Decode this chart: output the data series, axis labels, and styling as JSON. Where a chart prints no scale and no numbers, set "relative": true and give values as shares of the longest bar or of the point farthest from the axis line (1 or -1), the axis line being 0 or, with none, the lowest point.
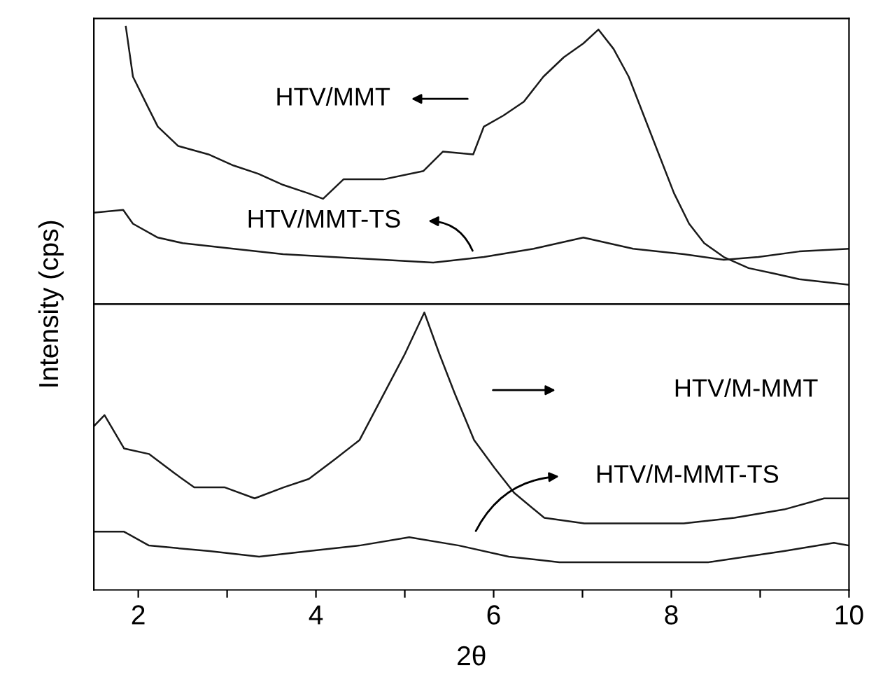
{
  "chart_data": [
    {
      "type": "line",
      "relative": true,
      "xlim": [
        1.5,
        10
      ],
      "tick_labels": false,
      "ylabel": "Intensity (cps)",
      "marker": "none",
      "line_style": "solid",
      "legend": false,
      "grid": false,
      "annotations": [
        "HTV/MMT",
        "HTV/MMT-TS"
      ],
      "series": [
        {
          "color": "#1a1a1a",
          "x": [
            1.86,
            1.94,
            2.11,
            2.22,
            2.45,
            2.79,
            3.07,
            3.35,
            3.63,
            3.91,
            4.08,
            4.31,
            4.76,
            5.21,
            5.43,
            5.77,
            5.89,
            6.11,
            6.34,
            6.56,
            6.79,
            7.01,
            7.18,
            7.35,
            7.52,
            7.69,
            7.86,
            8.03,
            8.2,
            8.37,
            8.59,
            8.87,
            9.16,
            9.44,
            9.72,
            10.0
          ],
          "values": [
            1.0,
            0.82,
            0.71,
            0.64,
            0.57,
            0.54,
            0.5,
            0.47,
            0.43,
            0.4,
            0.38,
            0.45,
            0.45,
            0.48,
            0.55,
            0.54,
            0.64,
            0.68,
            0.73,
            0.82,
            0.89,
            0.94,
            0.99,
            0.92,
            0.82,
            0.68,
            0.54,
            0.4,
            0.29,
            0.22,
            0.17,
            0.13,
            0.11,
            0.09,
            0.08,
            0.07
          ]
        },
        {
          "color": "#1a1a1a",
          "x": [
            1.5,
            1.83,
            1.94,
            2.22,
            2.5,
            3.07,
            3.63,
            4.19,
            4.76,
            5.32,
            5.89,
            6.45,
            7.01,
            7.57,
            8.14,
            8.59,
            8.98,
            9.44,
            10.0
          ],
          "values": [
            0.33,
            0.34,
            0.29,
            0.24,
            0.22,
            0.2,
            0.18,
            0.17,
            0.16,
            0.15,
            0.17,
            0.2,
            0.24,
            0.2,
            0.18,
            0.16,
            0.17,
            0.19,
            0.2
          ]
        }
      ]
    },
    {
      "type": "line",
      "relative": true,
      "xlim": [
        1.5,
        10
      ],
      "tick_labels": "x",
      "xlabel": "2θ",
      "marker": "none",
      "line_style": "solid",
      "legend": false,
      "grid": false,
      "xticks": [
        2,
        {
          "value": 3,
          "label": null
        },
        4,
        {
          "value": 5,
          "label": null
        },
        6,
        {
          "value": 7,
          "label": null
        },
        8,
        {
          "value": 9,
          "label": null
        },
        10
      ],
      "annotations": [
        "HTV/M-MMT",
        "HTV/M-MMT-TS"
      ],
      "series": [
        {
          "color": "#1a1a1a",
          "x": [
            1.5,
            1.62,
            1.84,
            2.12,
            2.41,
            2.63,
            2.97,
            3.31,
            3.64,
            3.92,
            4.21,
            4.49,
            4.77,
            5.0,
            5.22,
            5.39,
            5.56,
            5.78,
            6.01,
            6.23,
            6.57,
            7.02,
            7.58,
            8.14,
            8.71,
            9.27,
            9.72,
            10.0
          ],
          "values": [
            0.59,
            0.63,
            0.51,
            0.49,
            0.42,
            0.37,
            0.37,
            0.33,
            0.37,
            0.4,
            0.47,
            0.54,
            0.71,
            0.85,
            1.0,
            0.85,
            0.71,
            0.54,
            0.44,
            0.35,
            0.26,
            0.24,
            0.24,
            0.24,
            0.26,
            0.29,
            0.33,
            0.33
          ]
        },
        {
          "color": "#1a1a1a",
          "x": [
            1.5,
            1.84,
            2.12,
            2.8,
            3.36,
            3.92,
            4.49,
            5.05,
            5.61,
            6.17,
            6.74,
            7.58,
            8.42,
            9.27,
            9.83,
            10.0
          ],
          "values": [
            0.21,
            0.21,
            0.16,
            0.14,
            0.12,
            0.14,
            0.16,
            0.19,
            0.16,
            0.12,
            0.1,
            0.1,
            0.1,
            0.14,
            0.17,
            0.16
          ]
        }
      ]
    }
  ]
}
